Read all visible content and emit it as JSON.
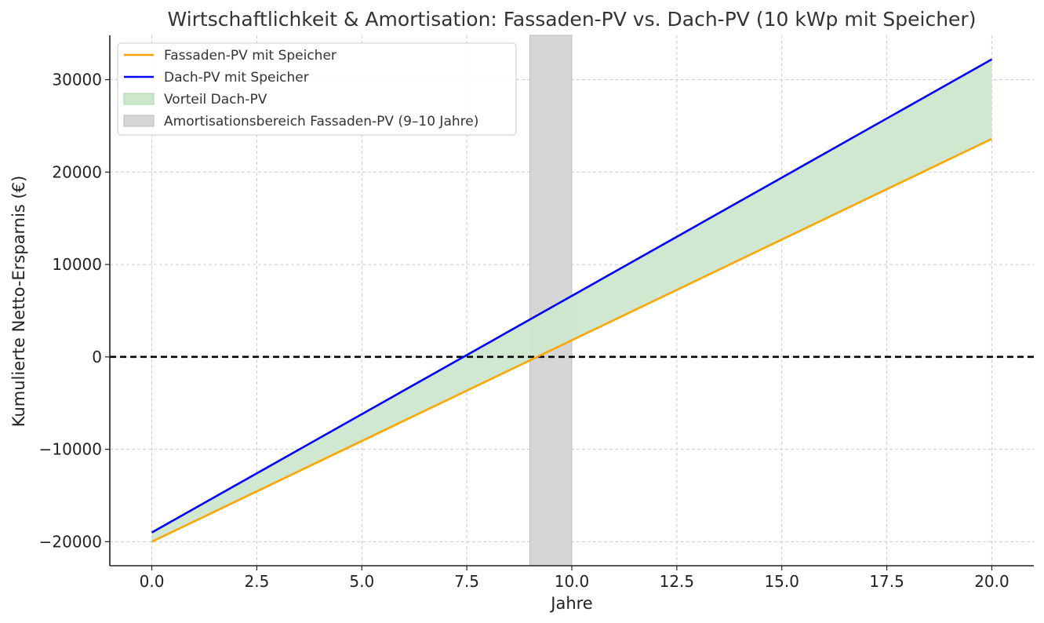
{
  "chart_data": {
    "type": "line",
    "title": "Wirtschaftlichkeit & Amortisation: Fassaden-PV vs. Dach-PV (10 kWp mit Speicher)",
    "xlabel": "Jahre",
    "ylabel": "Kumulierte Netto-Ersparnis (€)",
    "xlim": [
      -1,
      21
    ],
    "ylim": [
      -22600,
      34800
    ],
    "xticks": [
      0,
      2.5,
      5,
      7.5,
      10,
      12.5,
      15,
      17.5,
      20
    ],
    "xtick_labels": [
      "0.0",
      "2.5",
      "5.0",
      "7.5",
      "10.0",
      "12.5",
      "15.0",
      "17.5",
      "20.0"
    ],
    "yticks": [
      -20000,
      -10000,
      0,
      10000,
      20000,
      30000
    ],
    "ytick_labels": [
      "−20000",
      "−10000",
      "0",
      "10000",
      "20000",
      "30000"
    ],
    "grid": true,
    "legend_position": "top-left",
    "series": [
      {
        "name": "Fassaden-PV mit Speicher",
        "color": "#ffa500",
        "x": [
          0,
          20
        ],
        "y": [
          -20000,
          23600
        ]
      },
      {
        "name": "Dach-PV mit Speicher",
        "color": "#0000ff",
        "x": [
          0,
          20
        ],
        "y": [
          -19000,
          32200
        ]
      }
    ],
    "fill_between": {
      "name": "Vorteil Dach-PV",
      "color": "#cde7cc",
      "between": [
        "Fassaden-PV mit Speicher",
        "Dach-PV mit Speicher"
      ]
    },
    "span": {
      "name": "Amortisationsbereich Fassaden-PV (9–10 Jahre)",
      "color": "#d6d6d6",
      "x_start": 9,
      "x_end": 10
    },
    "hline": {
      "y": 0,
      "style": "dashed",
      "color": "#000000"
    }
  }
}
